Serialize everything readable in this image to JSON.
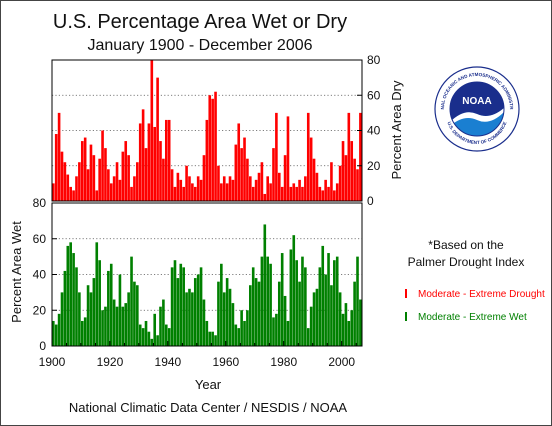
{
  "chart_data": {
    "type": "bar",
    "title": "U.S. Percentage Area Wet or Dry",
    "subtitle": "January 1900 - December 2006",
    "xlabel": "Year",
    "x_range": [
      1900,
      2007
    ],
    "x_ticks": [
      "1900",
      "1920",
      "1940",
      "1960",
      "1980",
      "2000"
    ],
    "series": [
      {
        "name": "Moderate - Extreme Drought",
        "color": "#ff0000",
        "panel": "top",
        "ylabel": "Percent Area Dry",
        "ylim": [
          0,
          80
        ],
        "y_ticks": [
          "0",
          "20",
          "40",
          "60",
          "80"
        ],
        "values": [
          {
            "year": 1900,
            "value": 10
          },
          {
            "year": 1901,
            "value": 38
          },
          {
            "year": 1902,
            "value": 50
          },
          {
            "year": 1903,
            "value": 28
          },
          {
            "year": 1904,
            "value": 22
          },
          {
            "year": 1905,
            "value": 15
          },
          {
            "year": 1906,
            "value": 8
          },
          {
            "year": 1907,
            "value": 6
          },
          {
            "year": 1908,
            "value": 14
          },
          {
            "year": 1909,
            "value": 22
          },
          {
            "year": 1910,
            "value": 34
          },
          {
            "year": 1911,
            "value": 36
          },
          {
            "year": 1912,
            "value": 18
          },
          {
            "year": 1913,
            "value": 32
          },
          {
            "year": 1914,
            "value": 26
          },
          {
            "year": 1915,
            "value": 6
          },
          {
            "year": 1916,
            "value": 24
          },
          {
            "year": 1917,
            "value": 40
          },
          {
            "year": 1918,
            "value": 30
          },
          {
            "year": 1919,
            "value": 18
          },
          {
            "year": 1920,
            "value": 10
          },
          {
            "year": 1921,
            "value": 14
          },
          {
            "year": 1922,
            "value": 22
          },
          {
            "year": 1923,
            "value": 12
          },
          {
            "year": 1924,
            "value": 28
          },
          {
            "year": 1925,
            "value": 34
          },
          {
            "year": 1926,
            "value": 26
          },
          {
            "year": 1927,
            "value": 8
          },
          {
            "year": 1928,
            "value": 14
          },
          {
            "year": 1929,
            "value": 22
          },
          {
            "year": 1930,
            "value": 44
          },
          {
            "year": 1931,
            "value": 52
          },
          {
            "year": 1932,
            "value": 30
          },
          {
            "year": 1933,
            "value": 44
          },
          {
            "year": 1934,
            "value": 80
          },
          {
            "year": 1935,
            "value": 42
          },
          {
            "year": 1936,
            "value": 70
          },
          {
            "year": 1937,
            "value": 34
          },
          {
            "year": 1938,
            "value": 24
          },
          {
            "year": 1939,
            "value": 46
          },
          {
            "year": 1940,
            "value": 46
          },
          {
            "year": 1941,
            "value": 18
          },
          {
            "year": 1942,
            "value": 8
          },
          {
            "year": 1943,
            "value": 16
          },
          {
            "year": 1944,
            "value": 12
          },
          {
            "year": 1945,
            "value": 8
          },
          {
            "year": 1946,
            "value": 20
          },
          {
            "year": 1947,
            "value": 14
          },
          {
            "year": 1948,
            "value": 10
          },
          {
            "year": 1949,
            "value": 8
          },
          {
            "year": 1950,
            "value": 14
          },
          {
            "year": 1951,
            "value": 12
          },
          {
            "year": 1952,
            "value": 26
          },
          {
            "year": 1953,
            "value": 46
          },
          {
            "year": 1954,
            "value": 60
          },
          {
            "year": 1955,
            "value": 58
          },
          {
            "year": 1956,
            "value": 62
          },
          {
            "year": 1957,
            "value": 20
          },
          {
            "year": 1958,
            "value": 10
          },
          {
            "year": 1959,
            "value": 14
          },
          {
            "year": 1960,
            "value": 10
          },
          {
            "year": 1961,
            "value": 14
          },
          {
            "year": 1962,
            "value": 12
          },
          {
            "year": 1963,
            "value": 32
          },
          {
            "year": 1964,
            "value": 44
          },
          {
            "year": 1965,
            "value": 30
          },
          {
            "year": 1966,
            "value": 36
          },
          {
            "year": 1967,
            "value": 24
          },
          {
            "year": 1968,
            "value": 14
          },
          {
            "year": 1969,
            "value": 8
          },
          {
            "year": 1970,
            "value": 12
          },
          {
            "year": 1971,
            "value": 16
          },
          {
            "year": 1972,
            "value": 22
          },
          {
            "year": 1973,
            "value": 4
          },
          {
            "year": 1974,
            "value": 14
          },
          {
            "year": 1975,
            "value": 10
          },
          {
            "year": 1976,
            "value": 30
          },
          {
            "year": 1977,
            "value": 50
          },
          {
            "year": 1978,
            "value": 16
          },
          {
            "year": 1979,
            "value": 8
          },
          {
            "year": 1980,
            "value": 26
          },
          {
            "year": 1981,
            "value": 48
          },
          {
            "year": 1982,
            "value": 8
          },
          {
            "year": 1983,
            "value": 10
          },
          {
            "year": 1984,
            "value": 8
          },
          {
            "year": 1985,
            "value": 12
          },
          {
            "year": 1986,
            "value": 8
          },
          {
            "year": 1987,
            "value": 14
          },
          {
            "year": 1988,
            "value": 50
          },
          {
            "year": 1989,
            "value": 36
          },
          {
            "year": 1990,
            "value": 24
          },
          {
            "year": 1991,
            "value": 16
          },
          {
            "year": 1992,
            "value": 8
          },
          {
            "year": 1993,
            "value": 6
          },
          {
            "year": 1994,
            "value": 12
          },
          {
            "year": 1995,
            "value": 8
          },
          {
            "year": 1996,
            "value": 22
          },
          {
            "year": 1997,
            "value": 6
          },
          {
            "year": 1998,
            "value": 10
          },
          {
            "year": 1999,
            "value": 20
          },
          {
            "year": 2000,
            "value": 34
          },
          {
            "year": 2001,
            "value": 26
          },
          {
            "year": 2002,
            "value": 50
          },
          {
            "year": 2003,
            "value": 34
          },
          {
            "year": 2004,
            "value": 24
          },
          {
            "year": 2005,
            "value": 18
          },
          {
            "year": 2006,
            "value": 50
          }
        ]
      },
      {
        "name": "Moderate - Extreme Wet",
        "color": "#008000",
        "panel": "bottom",
        "ylabel": "Percent Area Wet",
        "ylim": [
          0,
          80
        ],
        "y_ticks": [
          "0",
          "20",
          "40",
          "60",
          "80"
        ],
        "values": [
          {
            "year": 1900,
            "value": 14
          },
          {
            "year": 1901,
            "value": 12
          },
          {
            "year": 1902,
            "value": 18
          },
          {
            "year": 1903,
            "value": 30
          },
          {
            "year": 1904,
            "value": 42
          },
          {
            "year": 1905,
            "value": 56
          },
          {
            "year": 1906,
            "value": 58
          },
          {
            "year": 1907,
            "value": 52
          },
          {
            "year": 1908,
            "value": 44
          },
          {
            "year": 1909,
            "value": 30
          },
          {
            "year": 1910,
            "value": 14
          },
          {
            "year": 1911,
            "value": 16
          },
          {
            "year": 1912,
            "value": 34
          },
          {
            "year": 1913,
            "value": 30
          },
          {
            "year": 1914,
            "value": 38
          },
          {
            "year": 1915,
            "value": 58
          },
          {
            "year": 1916,
            "value": 48
          },
          {
            "year": 1917,
            "value": 20
          },
          {
            "year": 1918,
            "value": 22
          },
          {
            "year": 1919,
            "value": 42
          },
          {
            "year": 1920,
            "value": 46
          },
          {
            "year": 1921,
            "value": 26
          },
          {
            "year": 1922,
            "value": 22
          },
          {
            "year": 1923,
            "value": 40
          },
          {
            "year": 1924,
            "value": 22
          },
          {
            "year": 1925,
            "value": 24
          },
          {
            "year": 1926,
            "value": 30
          },
          {
            "year": 1927,
            "value": 50
          },
          {
            "year": 1928,
            "value": 36
          },
          {
            "year": 1929,
            "value": 34
          },
          {
            "year": 1930,
            "value": 12
          },
          {
            "year": 1931,
            "value": 10
          },
          {
            "year": 1932,
            "value": 14
          },
          {
            "year": 1933,
            "value": 8
          },
          {
            "year": 1934,
            "value": 4
          },
          {
            "year": 1935,
            "value": 18
          },
          {
            "year": 1936,
            "value": 6
          },
          {
            "year": 1937,
            "value": 22
          },
          {
            "year": 1938,
            "value": 26
          },
          {
            "year": 1939,
            "value": 12
          },
          {
            "year": 1940,
            "value": 10
          },
          {
            "year": 1941,
            "value": 44
          },
          {
            "year": 1942,
            "value": 48
          },
          {
            "year": 1943,
            "value": 38
          },
          {
            "year": 1944,
            "value": 46
          },
          {
            "year": 1945,
            "value": 44
          },
          {
            "year": 1946,
            "value": 30
          },
          {
            "year": 1947,
            "value": 32
          },
          {
            "year": 1948,
            "value": 30
          },
          {
            "year": 1949,
            "value": 38
          },
          {
            "year": 1950,
            "value": 40
          },
          {
            "year": 1951,
            "value": 44
          },
          {
            "year": 1952,
            "value": 26
          },
          {
            "year": 1953,
            "value": 14
          },
          {
            "year": 1954,
            "value": 8
          },
          {
            "year": 1955,
            "value": 8
          },
          {
            "year": 1956,
            "value": 6
          },
          {
            "year": 1957,
            "value": 36
          },
          {
            "year": 1958,
            "value": 46
          },
          {
            "year": 1959,
            "value": 30
          },
          {
            "year": 1960,
            "value": 38
          },
          {
            "year": 1961,
            "value": 32
          },
          {
            "year": 1962,
            "value": 24
          },
          {
            "year": 1963,
            "value": 12
          },
          {
            "year": 1964,
            "value": 10
          },
          {
            "year": 1965,
            "value": 20
          },
          {
            "year": 1966,
            "value": 14
          },
          {
            "year": 1967,
            "value": 20
          },
          {
            "year": 1968,
            "value": 34
          },
          {
            "year": 1969,
            "value": 44
          },
          {
            "year": 1970,
            "value": 38
          },
          {
            "year": 1971,
            "value": 36
          },
          {
            "year": 1972,
            "value": 50
          },
          {
            "year": 1973,
            "value": 68
          },
          {
            "year": 1974,
            "value": 50
          },
          {
            "year": 1975,
            "value": 46
          },
          {
            "year": 1976,
            "value": 16
          },
          {
            "year": 1977,
            "value": 18
          },
          {
            "year": 1978,
            "value": 36
          },
          {
            "year": 1979,
            "value": 52
          },
          {
            "year": 1980,
            "value": 28
          },
          {
            "year": 1981,
            "value": 14
          },
          {
            "year": 1982,
            "value": 54
          },
          {
            "year": 1983,
            "value": 62
          },
          {
            "year": 1984,
            "value": 48
          },
          {
            "year": 1985,
            "value": 36
          },
          {
            "year": 1986,
            "value": 50
          },
          {
            "year": 1987,
            "value": 44
          },
          {
            "year": 1988,
            "value": 10
          },
          {
            "year": 1989,
            "value": 22
          },
          {
            "year": 1990,
            "value": 30
          },
          {
            "year": 1991,
            "value": 32
          },
          {
            "year": 1992,
            "value": 44
          },
          {
            "year": 1993,
            "value": 56
          },
          {
            "year": 1994,
            "value": 40
          },
          {
            "year": 1995,
            "value": 52
          },
          {
            "year": 1996,
            "value": 34
          },
          {
            "year": 1997,
            "value": 48
          },
          {
            "year": 1998,
            "value": 50
          },
          {
            "year": 1999,
            "value": 30
          },
          {
            "year": 2000,
            "value": 18
          },
          {
            "year": 2001,
            "value": 24
          },
          {
            "year": 2002,
            "value": 14
          },
          {
            "year": 2003,
            "value": 20
          },
          {
            "year": 2004,
            "value": 36
          },
          {
            "year": 2005,
            "value": 50
          },
          {
            "year": 2006,
            "value": 26
          }
        ]
      }
    ],
    "grid": "horizontal dotted",
    "legend": "right",
    "legend_note": [
      "*Based on the",
      "Palmer Drought Index"
    ],
    "source": "National Climatic Data Center / NESDIS / NOAA"
  },
  "logo": {
    "wordmark": "NOAA",
    "ring_top": "NATIONAL OCEANIC AND ATMOSPHERIC ADMINISTRATION",
    "ring_bottom": "U.S. DEPARTMENT OF COMMERCE",
    "colors": {
      "sky": "#1a2e8c",
      "ocean": "#1a7fd1",
      "gull": "#ffffff",
      "ring": "#ffffff"
    }
  }
}
